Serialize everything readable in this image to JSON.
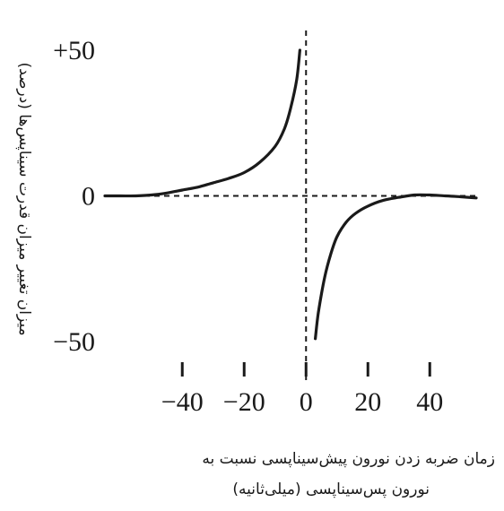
{
  "chart_data": {
    "type": "line",
    "ylabel": "میزان تغییر میزان قدرت سیناپس‌ها (درصد)",
    "xlabel_line1": "زمان ضربه زدن نورون پیش‌سیناپسی نسبت به",
    "xlabel_line2": "نورون پس‌سیناپسی (میلی‌ثانیه)",
    "xlim": [
      -65,
      55
    ],
    "ylim": [
      -50,
      50
    ],
    "x_ticks": [
      -40,
      -20,
      0,
      20,
      40
    ],
    "x_tick_labels": [
      "−40",
      "−20",
      "0",
      "20",
      "40"
    ],
    "y_ticks": [
      50,
      0,
      -50
    ],
    "y_tick_labels": [
      "+50",
      "0",
      "−50"
    ],
    "grid": false,
    "zero_lines": "dashed",
    "series": [
      {
        "segment": "pre-before-post",
        "color": "#1a1a1a",
        "x": [
          -65,
          -60,
          -55,
          -50,
          -45,
          -40,
          -35,
          -30,
          -25,
          -20,
          -15,
          -10,
          -7,
          -5,
          -3,
          -2
        ],
        "y": [
          0,
          0,
          0,
          0.3,
          1,
          2,
          3,
          4.5,
          6,
          8,
          11.5,
          17,
          23,
          30,
          40,
          50
        ]
      },
      {
        "segment": "post-before-pre",
        "color": "#1a1a1a",
        "x": [
          3,
          4,
          6,
          8,
          10,
          13,
          16,
          20,
          25,
          30,
          35,
          40,
          45,
          50,
          55
        ],
        "y": [
          -49,
          -40,
          -28,
          -20,
          -14,
          -9,
          -6,
          -3.5,
          -1.5,
          -0.5,
          0.3,
          0.3,
          0,
          -0.3,
          -0.7
        ]
      }
    ]
  }
}
